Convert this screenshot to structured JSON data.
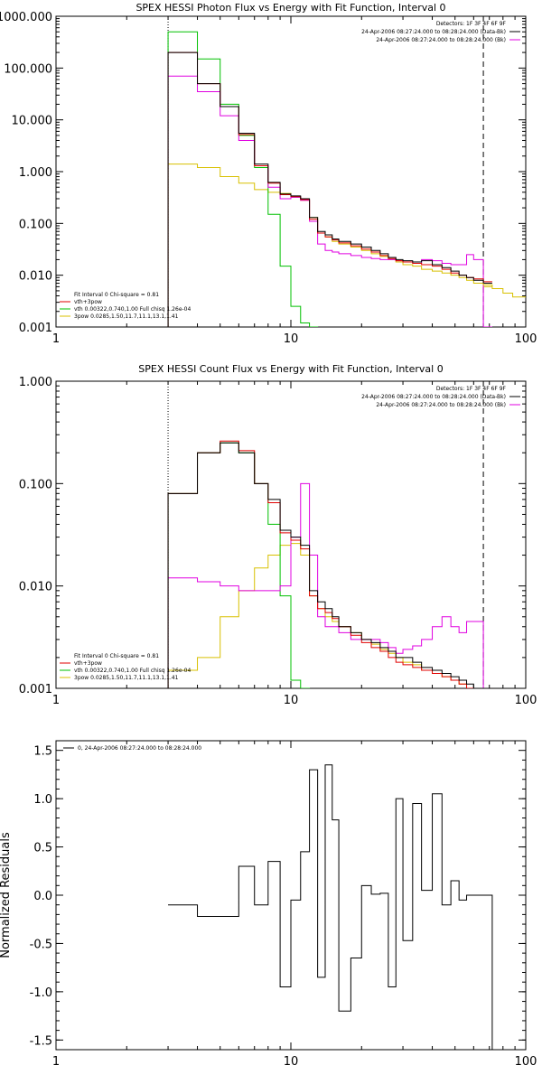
{
  "chart_data": [
    {
      "type": "line",
      "scale": "log-log",
      "title": "SPEX HESSI Photon Flux vs Energy with Fit Function, Interval 0",
      "xlabel": "",
      "ylabel": "",
      "xlim": [
        1,
        100
      ],
      "ylim": [
        0.001,
        1000
      ],
      "xticks": [
        "1",
        "10",
        "100"
      ],
      "yticks": [
        "0.001",
        "0.010",
        "0.100",
        "1.000",
        "10.000",
        "100.000",
        "1000.000"
      ],
      "legend_top": [
        "Detectors: 1F 3F 4F 6F 9F",
        "24-Apr-2006 08:27:24.000 to 08:28:24.000 (Data-Bk)",
        "24-Apr-2006 08:27:24.000 to 08:28:24.000 (Bk)"
      ],
      "legend_bottom": [
        "Fit Interval 0   Chi-square = 0.81",
        "vth+3pow",
        "vth 0.00322,0.740,1.00   Full chisq 1.26e-04",
        "3pow 0.0285,1.50,11.7,11.1,13.1,1.41"
      ],
      "colors": {
        "data": "#000000",
        "bk": "#e000e0",
        "total": "#e00000",
        "vth": "#00c000",
        "pow": "#d8c000"
      },
      "series": [
        {
          "name": "Data-Bk",
          "x": [
            3,
            4,
            5,
            6,
            7,
            8,
            9,
            10,
            11,
            12,
            13,
            14,
            15,
            16,
            18,
            20,
            22,
            24,
            26,
            28,
            30,
            33,
            36,
            40,
            44,
            48,
            52,
            56,
            60,
            66
          ],
          "values": [
            200,
            50,
            18,
            5.5,
            1.4,
            0.62,
            0.37,
            0.34,
            0.3,
            0.13,
            0.07,
            0.06,
            0.05,
            0.045,
            0.04,
            0.035,
            0.03,
            0.026,
            0.022,
            0.02,
            0.019,
            0.018,
            0.019,
            0.016,
            0.014,
            0.012,
            0.01,
            0.009,
            0.008,
            0.007
          ]
        },
        {
          "name": "Bk",
          "x": [
            3,
            4,
            5,
            6,
            7,
            8,
            9,
            10,
            11,
            12,
            13,
            14,
            15,
            16,
            18,
            20,
            22,
            24,
            26,
            28,
            30,
            33,
            36,
            40,
            44,
            48,
            52,
            56,
            60,
            66
          ],
          "values": [
            70,
            35,
            12,
            4,
            1.3,
            0.5,
            0.3,
            0.32,
            0.28,
            0.11,
            0.04,
            0.03,
            0.028,
            0.026,
            0.024,
            0.022,
            0.021,
            0.02,
            0.02,
            0.019,
            0.018,
            0.017,
            0.02,
            0.019,
            0.017,
            0.016,
            0.016,
            0.025,
            0.02,
            0.001
          ]
        },
        {
          "name": "vth+3pow",
          "x": [
            3,
            4,
            5,
            6,
            7,
            8,
            9,
            10,
            11,
            12,
            13,
            14,
            15,
            16,
            18,
            20,
            22,
            24,
            26,
            28,
            30,
            33,
            36,
            40,
            44,
            48,
            52,
            56,
            60,
            66
          ],
          "values": [
            200,
            50,
            18,
            5.2,
            1.3,
            0.6,
            0.36,
            0.33,
            0.29,
            0.12,
            0.065,
            0.055,
            0.048,
            0.042,
            0.037,
            0.032,
            0.028,
            0.024,
            0.021,
            0.019,
            0.018,
            0.017,
            0.016,
            0.015,
            0.013,
            0.011,
            0.01,
            0.009,
            0.0085,
            0.0075
          ]
        },
        {
          "name": "vth",
          "x": [
            3,
            4,
            5,
            6,
            7,
            8,
            9,
            10,
            11,
            12,
            13,
            14,
            15,
            16,
            18,
            20,
            22,
            24,
            26,
            28,
            30,
            33,
            36,
            40,
            44,
            48,
            52,
            56,
            60,
            66
          ],
          "values": [
            500,
            150,
            20,
            5,
            1.2,
            0.15,
            0.015,
            0.0025,
            0.0012,
            0.001,
            0,
            0,
            0,
            0,
            0,
            0,
            0,
            0,
            0,
            0,
            0,
            0,
            0,
            0,
            0,
            0,
            0,
            0,
            0,
            0
          ]
        },
        {
          "name": "3pow",
          "x": [
            3,
            4,
            5,
            6,
            7,
            8,
            9,
            10,
            11,
            12,
            13,
            14,
            15,
            16,
            18,
            20,
            22,
            24,
            26,
            28,
            30,
            33,
            36,
            40,
            44,
            48,
            52,
            56,
            60,
            66
          ],
          "values": [
            1.4,
            1.2,
            0.8,
            0.6,
            0.45,
            0.4,
            0.38,
            0.32,
            0.28,
            0.13,
            0.065,
            0.055,
            0.045,
            0.04,
            0.035,
            0.03,
            0.026,
            0.023,
            0.02,
            0.018,
            0.016,
            0.015,
            0.013,
            0.012,
            0.011,
            0.01,
            0.009,
            0.008,
            0.007,
            0.006
          ]
        }
      ]
    },
    {
      "type": "line",
      "scale": "log-log",
      "title": "SPEX HESSI Count Flux vs Energy with Fit Function, Interval 0",
      "xlabel": "",
      "ylabel": "",
      "xlim": [
        1,
        100
      ],
      "ylim": [
        0.001,
        1
      ],
      "xticks": [
        "1",
        "10",
        "100"
      ],
      "yticks": [
        "0.001",
        "0.010",
        "0.100",
        "1.000"
      ],
      "legend_top": [
        "Detectors: 1F 3F 4F 6F 9F",
        "24-Apr-2006 08:27:24.000 to 08:28:24.000 (Data-Bk)",
        "24-Apr-2006 08:27:24.000 to 08:28:24.000 (Bk)"
      ],
      "legend_bottom": [
        "Fit Interval 0   Chi-square = 0.81",
        "vth+3pow",
        "vth 0.00322,0.740,1.00   Full chisq 1.26e-04",
        "3pow 0.0285,1.50,11.7,11.1,13.1,1.41"
      ],
      "colors": {
        "data": "#000000",
        "bk": "#e000e0",
        "total": "#e00000",
        "vth": "#00c000",
        "pow": "#d8c000"
      },
      "series": [
        {
          "name": "Data-Bk",
          "x": [
            3,
            4,
            5,
            6,
            7,
            8,
            9,
            10,
            11,
            12,
            13,
            14,
            15,
            16,
            18,
            20,
            22,
            24,
            26,
            28,
            30,
            33,
            36,
            40,
            44,
            48,
            52,
            56,
            60,
            66
          ],
          "values": [
            0.08,
            0.2,
            0.25,
            0.2,
            0.1,
            0.07,
            0.035,
            0.03,
            0.025,
            0.009,
            0.007,
            0.006,
            0.005,
            0.004,
            0.0035,
            0.003,
            0.0028,
            0.0025,
            0.0023,
            0.002,
            0.002,
            0.0018,
            0.0016,
            0.0015,
            0.0014,
            0.0013,
            0.0012,
            0.0011,
            0.001,
            0.001
          ]
        },
        {
          "name": "Bk",
          "x": [
            3,
            4,
            5,
            6,
            7,
            8,
            9,
            10,
            11,
            12,
            13,
            14,
            15,
            16,
            18,
            20,
            22,
            24,
            26,
            28,
            30,
            33,
            36,
            40,
            44,
            48,
            52,
            56,
            60,
            66
          ],
          "values": [
            0.012,
            0.011,
            0.01,
            0.009,
            0.009,
            0.009,
            0.01,
            0.03,
            0.1,
            0.02,
            0.005,
            0.004,
            0.004,
            0.0035,
            0.003,
            0.003,
            0.003,
            0.0028,
            0.0025,
            0.0022,
            0.0024,
            0.0026,
            0.003,
            0.004,
            0.005,
            0.004,
            0.0035,
            0.0045,
            0.0045,
            0.001
          ]
        },
        {
          "name": "vth+3pow",
          "x": [
            3,
            4,
            5,
            6,
            7,
            8,
            9,
            10,
            11,
            12,
            13,
            14,
            15,
            16,
            18,
            20,
            22,
            24,
            26,
            28,
            30,
            33,
            36,
            40,
            44,
            48,
            52,
            56,
            60,
            66
          ],
          "values": [
            0.08,
            0.2,
            0.26,
            0.21,
            0.1,
            0.065,
            0.033,
            0.028,
            0.023,
            0.008,
            0.006,
            0.0055,
            0.0048,
            0.004,
            0.0033,
            0.0028,
            0.0025,
            0.0023,
            0.002,
            0.0018,
            0.0017,
            0.0016,
            0.0015,
            0.0014,
            0.0013,
            0.0012,
            0.0011,
            0.001,
            0.001,
            0.001
          ]
        },
        {
          "name": "vth",
          "x": [
            3,
            4,
            5,
            6,
            7,
            8,
            9,
            10,
            11,
            12,
            13,
            14,
            15,
            16,
            18,
            20,
            22,
            24,
            26,
            28,
            30,
            33,
            36,
            40,
            44,
            48,
            52,
            56,
            60,
            66
          ],
          "values": [
            0.08,
            0.2,
            0.25,
            0.2,
            0.1,
            0.04,
            0.008,
            0.0012,
            0.001,
            0,
            0,
            0,
            0,
            0,
            0,
            0,
            0,
            0,
            0,
            0,
            0,
            0,
            0,
            0,
            0,
            0,
            0,
            0,
            0,
            0
          ]
        },
        {
          "name": "3pow",
          "x": [
            3,
            4,
            5,
            6,
            7,
            8,
            9,
            10,
            11,
            12,
            13,
            14,
            15,
            16,
            18,
            20,
            22,
            24,
            26,
            28,
            30,
            33,
            36,
            40,
            44,
            48,
            52,
            56,
            60,
            66
          ],
          "values": [
            0.0015,
            0.002,
            0.005,
            0.009,
            0.015,
            0.02,
            0.025,
            0.026,
            0.02,
            0.008,
            0.006,
            0.005,
            0.0045,
            0.004,
            0.0035,
            0.003,
            0.0027,
            0.0024,
            0.0022,
            0.002,
            0.0018,
            0.0017,
            0.0015,
            0.0014,
            0.0013,
            0.0012,
            0.0011,
            0.001,
            0.001,
            0.001
          ]
        }
      ]
    },
    {
      "type": "line",
      "scale": "log-x",
      "title": "",
      "xlabel": "",
      "ylabel": "Normalized Residuals",
      "xlim": [
        1,
        100
      ],
      "ylim": [
        -1.6,
        1.6
      ],
      "xticks": [
        "1",
        "10",
        "100"
      ],
      "yticks": [
        "-1.5",
        "-1.0",
        "-0.5",
        "0.0",
        "0.5",
        "1.0",
        "1.5"
      ],
      "legend_top": [
        "0, 24-Apr-2006 08:27:24.000 to 08:28:24.000"
      ],
      "series": [
        {
          "name": "0, 24-Apr-2006 08:27:24.000 to 08:28:24.000",
          "x": [
            3,
            4,
            5,
            6,
            7,
            8,
            9,
            10,
            11,
            12,
            13,
            14,
            15,
            16,
            18,
            20,
            22,
            24,
            26,
            28,
            30,
            33,
            36,
            40,
            44,
            48,
            52,
            56,
            60,
            66
          ],
          "values": [
            -0.1,
            -0.22,
            -0.22,
            0.3,
            -0.1,
            0.35,
            -0.95,
            -0.05,
            0.45,
            1.3,
            -0.85,
            1.35,
            0.78,
            -1.2,
            -0.65,
            0.1,
            0.01,
            0.02,
            -0.95,
            1.0,
            -0.47,
            0.95,
            0.05,
            1.05,
            -0.1,
            0.15,
            -0.05,
            0.0,
            0.0,
            0.0
          ]
        }
      ]
    }
  ]
}
